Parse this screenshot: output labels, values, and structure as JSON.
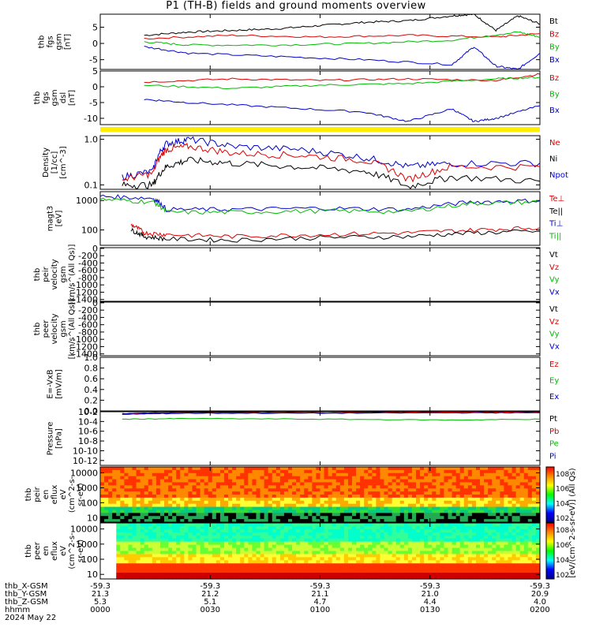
{
  "title": "P1 (TH-B) fields and ground moments overview",
  "chart_data": {
    "type": "line",
    "panels": [
      {
        "id": "fgs",
        "ylabel_lines": [
          "thb",
          "fgs",
          "gsm",
          "[nT]"
        ],
        "yticks": [
          "5",
          "0",
          "-5"
        ],
        "ylim": [
          -8,
          9
        ],
        "legend": [
          {
            "name": "Bt",
            "color": "#000000"
          },
          {
            "name": "Bz",
            "color": "#dd0000"
          },
          {
            "name": "By",
            "color": "#00bb00"
          },
          {
            "name": "Bx",
            "color": "#0000cc"
          }
        ],
        "series": [
          {
            "name": "Bt",
            "x": [
              0.1,
              0.2,
              0.3,
              0.4,
              0.5,
              0.6,
              0.7,
              0.8,
              0.85,
              0.9,
              0.95,
              1.0
            ],
            "values": [
              2.5,
              3.5,
              4.0,
              4.5,
              5.5,
              6.5,
              7.0,
              8.5,
              9.0,
              4.0,
              8.5,
              6.0
            ]
          },
          {
            "name": "Bz",
            "x": [
              0.1,
              0.3,
              0.5,
              0.7,
              0.9,
              1.0
            ],
            "values": [
              1.5,
              2.5,
              2.0,
              2.5,
              2.0,
              3.0
            ]
          },
          {
            "name": "By",
            "x": [
              0.1,
              0.2,
              0.4,
              0.6,
              0.8,
              0.95,
              1.0
            ],
            "values": [
              0.5,
              -0.5,
              -0.5,
              0.0,
              1.0,
              3.5,
              2.0
            ]
          },
          {
            "name": "Bx",
            "x": [
              0.1,
              0.2,
              0.4,
              0.6,
              0.8,
              0.85,
              0.9,
              0.95,
              1.0
            ],
            "values": [
              -1.0,
              -3.0,
              -4.0,
              -5.0,
              -6.5,
              -1.0,
              -7.0,
              -8.0,
              -3.0
            ]
          }
        ]
      },
      {
        "id": "fgs_dsl",
        "ylabel_lines": [
          "thb",
          "fgs",
          "gsm",
          "dsl",
          "[nT]"
        ],
        "yticks": [
          "5",
          "0",
          "-5",
          "-10"
        ],
        "ylim": [
          -12,
          5
        ],
        "legend": [
          {
            "name": "Bz",
            "color": "#dd0000"
          },
          {
            "name": "By",
            "color": "#00bb00"
          },
          {
            "name": "Bx",
            "color": "#0000cc"
          }
        ],
        "series": [
          {
            "name": "Bz",
            "x": [
              0.1,
              0.3,
              0.5,
              0.7,
              0.9,
              1.0
            ],
            "values": [
              1.5,
              2.5,
              2.0,
              2.5,
              2.0,
              4.0
            ]
          },
          {
            "name": "By",
            "x": [
              0.1,
              0.3,
              0.5,
              0.7,
              0.9,
              1.0
            ],
            "values": [
              0.5,
              -0.5,
              0.5,
              1.0,
              2.5,
              3.0
            ]
          },
          {
            "name": "Bx",
            "x": [
              0.1,
              0.2,
              0.4,
              0.6,
              0.7,
              0.8,
              0.85,
              0.9,
              1.0
            ],
            "values": [
              -4.0,
              -5.0,
              -6.5,
              -8.0,
              -11.0,
              -7.0,
              -11.0,
              -10.0,
              -6.0
            ]
          }
        ]
      },
      {
        "id": "density",
        "ylabel_lines": [
          "Density",
          "[1/cc]",
          "[cm^-3]"
        ],
        "yticks": [
          "1.0",
          "0.1"
        ],
        "ylim": [
          0.08,
          1.2
        ],
        "log": true,
        "legend": [
          {
            "name": "Ne",
            "color": "#dd0000"
          },
          {
            "name": "Ni",
            "color": "#000000"
          },
          {
            "name": "Npot",
            "color": "#0000cc"
          }
        ],
        "series": [
          {
            "name": "Npot",
            "x": [
              0.05,
              0.12,
              0.15,
              0.2,
              0.3,
              0.45,
              0.6,
              0.7,
              0.8,
              1.0
            ],
            "values": [
              0.15,
              0.2,
              0.8,
              1.0,
              0.7,
              0.6,
              0.4,
              0.25,
              0.3,
              0.3
            ]
          },
          {
            "name": "Ne",
            "x": [
              0.05,
              0.12,
              0.15,
              0.2,
              0.3,
              0.45,
              0.6,
              0.7,
              0.8,
              1.0
            ],
            "values": [
              0.13,
              0.18,
              0.6,
              0.7,
              0.5,
              0.45,
              0.35,
              0.13,
              0.25,
              0.25
            ]
          },
          {
            "name": "Ni",
            "x": [
              0.05,
              0.12,
              0.15,
              0.2,
              0.3,
              0.45,
              0.6,
              0.7,
              0.8,
              1.0
            ],
            "values": [
              0.1,
              0.1,
              0.25,
              0.35,
              0.3,
              0.25,
              0.2,
              0.09,
              0.15,
              0.12
            ]
          }
        ]
      },
      {
        "id": "temp",
        "ylabel_lines": [
          "magt3",
          "[eV]"
        ],
        "yticks": [
          "1000",
          "100"
        ],
        "ylim": [
          30,
          2000
        ],
        "log": true,
        "legend": [
          {
            "name": "Te⊥",
            "color": "#dd0000"
          },
          {
            "name": "Te||",
            "color": "#000000"
          },
          {
            "name": "Ti⊥",
            "color": "#0000cc"
          },
          {
            "name": "Ti||",
            "color": "#00bb00"
          }
        ],
        "series": [
          {
            "name": "Ti⊥",
            "x": [
              0.0,
              0.12,
              0.15,
              0.3,
              0.5,
              0.7,
              0.85,
              1.0
            ],
            "values": [
              1400,
              1200,
              500,
              500,
              550,
              500,
              900,
              1000
            ]
          },
          {
            "name": "Ti||",
            "x": [
              0.0,
              0.12,
              0.15,
              0.3,
              0.5,
              0.7,
              0.85,
              1.0
            ],
            "values": [
              1100,
              900,
              400,
              400,
              450,
              420,
              800,
              900
            ]
          },
          {
            "name": "Te⊥",
            "x": [
              0.07,
              0.1,
              0.15,
              0.3,
              0.5,
              0.7,
              0.85,
              1.0
            ],
            "values": [
              150,
              80,
              70,
              60,
              70,
              80,
              100,
              120
            ]
          },
          {
            "name": "Te||",
            "x": [
              0.07,
              0.1,
              0.15,
              0.3,
              0.5,
              0.7,
              0.85,
              1.0
            ],
            "values": [
              100,
              60,
              50,
              45,
              55,
              60,
              80,
              90
            ]
          }
        ]
      },
      {
        "id": "peir_vel",
        "ylabel_lines": [
          "thb",
          "peir",
          "velocity",
          "gsm",
          "[km/s^(All Qs)]"
        ],
        "yticks": [
          "0",
          "-200",
          "-400",
          "-600",
          "-800",
          "-1000",
          "-1200",
          "-1400"
        ],
        "ylim": [
          -1450,
          20
        ],
        "legend": [
          {
            "name": "Vt",
            "color": "#000000"
          },
          {
            "name": "Vz",
            "color": "#dd0000"
          },
          {
            "name": "Vy",
            "color": "#00bb00"
          },
          {
            "name": "Vx",
            "color": "#0000cc"
          }
        ],
        "series": []
      },
      {
        "id": "peer_vel",
        "ylabel_lines": [
          "thb",
          "peer",
          "velocity",
          "gsm",
          "[km/s^(All Qs)]"
        ],
        "yticks": [
          "0",
          "-200",
          "-400",
          "-600",
          "-800",
          "-1000",
          "-1200",
          "-1400"
        ],
        "ylim": [
          -1450,
          20
        ],
        "legend": [
          {
            "name": "Vt",
            "color": "#000000"
          },
          {
            "name": "Vz",
            "color": "#dd0000"
          },
          {
            "name": "Vy",
            "color": "#00bb00"
          },
          {
            "name": "Vx",
            "color": "#0000cc"
          }
        ],
        "series": []
      },
      {
        "id": "efield",
        "ylabel_lines": [
          "E=-VxB",
          "[mV/m]"
        ],
        "yticks": [
          "1.0",
          "0.8",
          "0.6",
          "0.4",
          "0.2",
          "0.0"
        ],
        "ylim": [
          0,
          1
        ],
        "legend": [
          {
            "name": "Ez",
            "color": "#dd0000"
          },
          {
            "name": "Ey",
            "color": "#00bb00"
          },
          {
            "name": "Ex",
            "color": "#0000cc"
          }
        ],
        "series": []
      },
      {
        "id": "pressure",
        "ylabel_lines": [
          "Pressure",
          "[nPa]"
        ],
        "yticks": [
          "10^-2",
          "10^-4",
          "10^-6",
          "10^-8",
          "10^-10",
          "10^-12"
        ],
        "ylim": [
          1e-13,
          0.01
        ],
        "log": true,
        "legend": [
          {
            "name": "Pt",
            "color": "#000000"
          },
          {
            "name": "Pb",
            "color": "#dd0000"
          },
          {
            "name": "Pe",
            "color": "#00bb00"
          },
          {
            "name": "Pi",
            "color": "#0000cc"
          }
        ],
        "series": [
          {
            "name": "Pt",
            "x": [
              0.05,
              0.2,
              0.5,
              0.8,
              1.0
            ],
            "values": [
              0.004,
              0.008,
              0.009,
              0.01,
              0.008
            ]
          },
          {
            "name": "Pb",
            "x": [
              0.05,
              0.2,
              0.5,
              0.8,
              1.0
            ],
            "values": [
              0.003,
              0.006,
              0.006,
              0.008,
              0.007
            ]
          },
          {
            "name": "Pe",
            "x": [
              0.05,
              0.2,
              0.5,
              0.8,
              1.0
            ],
            "values": [
              0.0003,
              0.0004,
              0.0003,
              0.0002,
              0.0003
            ]
          },
          {
            "name": "Pi",
            "x": [
              0.05,
              0.2,
              0.5,
              0.8,
              1.0
            ],
            "values": [
              0.003,
              0.005,
              0.005,
              0.006,
              0.006
            ]
          }
        ]
      },
      {
        "id": "peir_spec",
        "type": "heatmap",
        "ylabel_lines": [
          "thb",
          "peir",
          "en",
          "eflux",
          "eV",
          "(cm^2-s-",
          "sr-eV)"
        ],
        "yticks": [
          "10000",
          "1000",
          "100",
          "10"
        ],
        "ylim": [
          5,
          25000
        ],
        "log": true
      },
      {
        "id": "peer_spec",
        "type": "heatmap",
        "ylabel_lines": [
          "thb",
          "peer",
          "en",
          "eflux",
          "eV",
          "(cm^2-s-",
          "sr-eV)"
        ],
        "yticks": [
          "10000",
          "1000",
          "100",
          "10"
        ],
        "ylim": [
          5,
          25000
        ],
        "log": true
      }
    ],
    "colorbar": {
      "label": "[eV/(cm^2-s-sr-eV)] (All Qs)",
      "ticks_upper": [
        "10^8",
        "10^6",
        "10^4",
        "10^2"
      ],
      "ticks_lower": [
        "10^8",
        "10^6",
        "10^4",
        "10^2"
      ],
      "colors": [
        "#ff0000",
        "#ff8800",
        "#ffff00",
        "#00ff00",
        "#00ffff",
        "#0000ff",
        "#000088"
      ]
    },
    "xaxis": {
      "row_labels": [
        "thb_X-GSM",
        "thb_Y-GSM",
        "thb_Z-GSM",
        "hhmm",
        "2024 May 22"
      ],
      "ticks": [
        {
          "x": 0.0,
          "values": [
            "-59.3",
            "21.3",
            "5.3",
            "0000"
          ]
        },
        {
          "x": 0.25,
          "values": [
            "-59.3",
            "21.2",
            "5.1",
            "0030"
          ]
        },
        {
          "x": 0.5,
          "values": [
            "-59.3",
            "21.1",
            "4.7",
            "0100"
          ]
        },
        {
          "x": 0.75,
          "values": [
            "-59.3",
            "21.0",
            "4.4",
            "0130"
          ]
        },
        {
          "x": 1.0,
          "values": [
            "-59.3",
            "20.9",
            "4.0",
            "0200"
          ]
        }
      ]
    }
  }
}
